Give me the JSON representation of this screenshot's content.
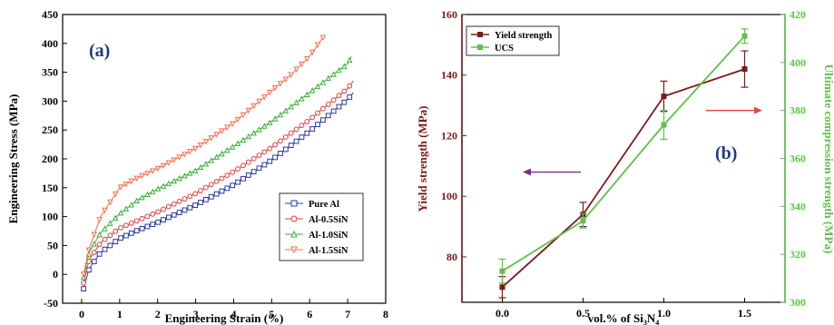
{
  "chart_data": [
    {
      "type": "line",
      "panel_label": "(a)",
      "xlabel": "Engineering Strain (%)",
      "ylabel": "Engineering Stress (MPa)",
      "xlim": [
        -0.5,
        8
      ],
      "ylim": [
        -50,
        450
      ],
      "xticks": [
        0,
        1,
        2,
        3,
        4,
        5,
        6,
        7,
        8
      ],
      "yticks": [
        -50,
        0,
        50,
        100,
        150,
        200,
        250,
        300,
        350,
        400,
        450
      ],
      "legend_position": "lower-right",
      "series": [
        {
          "name": "Pure Al",
          "color": "#2b3a9c",
          "marker": "square",
          "x": [
            0.05,
            0.2,
            0.5,
            1,
            1.5,
            2,
            3,
            4,
            5,
            6,
            7,
            7.15
          ],
          "y": [
            -25,
            10,
            38,
            62,
            77,
            90,
            120,
            155,
            198,
            248,
            303,
            315
          ]
        },
        {
          "name": "Al-0.5SiN",
          "color": "#e23b3b",
          "marker": "circle",
          "x": [
            0.05,
            0.2,
            0.5,
            1,
            1.5,
            2,
            3,
            4,
            5,
            6,
            7,
            7.15
          ],
          "y": [
            -15,
            25,
            55,
            80,
            94,
            108,
            140,
            178,
            220,
            268,
            322,
            335
          ]
        },
        {
          "name": "Al-1.0SiN",
          "color": "#36b236",
          "marker": "triangle-up",
          "x": [
            0.05,
            0.2,
            0.5,
            1,
            1.5,
            2,
            3,
            4,
            5,
            6,
            7,
            7.1
          ],
          "y": [
            -5,
            38,
            72,
            105,
            130,
            148,
            180,
            222,
            265,
            315,
            365,
            377
          ]
        },
        {
          "name": "Al-1.5SiN",
          "color": "#ff6a4a",
          "marker": "triangle-down",
          "x": [
            0.05,
            0.2,
            0.5,
            1,
            1.5,
            2,
            3,
            4,
            5,
            5.5,
            6,
            6.35
          ],
          "y": [
            0,
            45,
            100,
            150,
            168,
            183,
            218,
            262,
            318,
            345,
            378,
            410
          ]
        }
      ]
    },
    {
      "type": "line",
      "panel_label": "(b)",
      "xlabel": "vol.% of Si3N4",
      "xlabel_parts": {
        "pre": "vol.% of Si",
        "sub1": "3",
        "mid": "N",
        "sub2": "4"
      },
      "ylabel_left": "Yield strength (MPa)",
      "ylabel_right": "Ultimate compression strength (MPa)",
      "xlim": [
        -0.25,
        1.75
      ],
      "ylim_left": [
        65,
        160
      ],
      "ylim_right": [
        300,
        420
      ],
      "xticks": [
        0.0,
        0.5,
        1.0,
        1.5
      ],
      "xtick_labels": [
        "0.0",
        "0.5",
        "1.0",
        "1.5"
      ],
      "yticks_left": [
        80,
        100,
        120,
        140,
        160
      ],
      "yticks_right": [
        300,
        320,
        340,
        360,
        380,
        400,
        420
      ],
      "legend_position": "top-left",
      "series": [
        {
          "name": "Yield strength",
          "color": "#7a1a1a",
          "axis": "left",
          "marker": "square",
          "x": [
            0.0,
            0.5,
            1.0,
            1.5
          ],
          "y": [
            70,
            94,
            133,
            142
          ],
          "err": [
            3.5,
            4,
            5,
            6
          ]
        },
        {
          "name": "UCS",
          "color": "#5fc24a",
          "axis": "right",
          "marker": "square",
          "x": [
            0.0,
            0.5,
            1.0,
            1.5
          ],
          "y": [
            313,
            334,
            374,
            411
          ],
          "err": [
            5,
            3,
            6,
            3
          ]
        }
      ],
      "annotations": {
        "left_arrow_color": "#7a2e8c",
        "right_arrow_color": "#e04a3a"
      }
    }
  ]
}
